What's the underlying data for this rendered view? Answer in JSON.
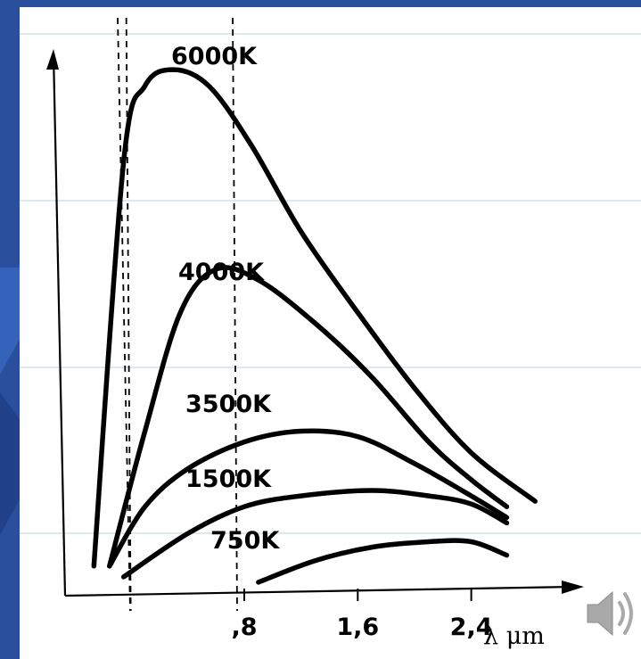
{
  "colors": {
    "slide_background": "#2a4f9c",
    "paper": "#ffffff",
    "ink": "#000000",
    "ruled_lines": "#b9d3dc",
    "speaker_icon": "#a9a9a9"
  },
  "icons": {
    "audio": "speaker-icon"
  },
  "chart_data": {
    "type": "line",
    "title": "",
    "xlabel": "λ μm",
    "ylabel": "",
    "xlim": [
      -0.4,
      3.1
    ],
    "ylim": [
      0,
      1.0
    ],
    "x_ticks": [
      0.8,
      1.6,
      2.4
    ],
    "x_tick_labels": [
      ",8",
      "1,6",
      "2,4"
    ],
    "grid": false,
    "legend": "labels on curves",
    "reference_lines_x": [
      0.0,
      0.75
    ],
    "series": [
      {
        "name": "6000K",
        "points": [
          [
            -0.26,
            0.05
          ],
          [
            -0.05,
            0.8
          ],
          [
            0.1,
            0.94
          ],
          [
            0.3,
            0.97
          ],
          [
            0.55,
            0.94
          ],
          [
            0.85,
            0.83
          ],
          [
            1.2,
            0.67
          ],
          [
            1.6,
            0.52
          ],
          [
            2.0,
            0.38
          ],
          [
            2.4,
            0.26
          ],
          [
            2.85,
            0.17
          ]
        ]
      },
      {
        "name": "4000K",
        "points": [
          [
            -0.15,
            0.05
          ],
          [
            0.1,
            0.3
          ],
          [
            0.35,
            0.52
          ],
          [
            0.6,
            0.6
          ],
          [
            0.9,
            0.58
          ],
          [
            1.3,
            0.5
          ],
          [
            1.7,
            0.4
          ],
          [
            2.1,
            0.28
          ],
          [
            2.4,
            0.21
          ],
          [
            2.65,
            0.16
          ]
        ]
      },
      {
        "name": "3500K",
        "points": [
          [
            -0.15,
            0.05
          ],
          [
            0.1,
            0.16
          ],
          [
            0.4,
            0.23
          ],
          [
            0.8,
            0.28
          ],
          [
            1.2,
            0.3
          ],
          [
            1.6,
            0.29
          ],
          [
            2.0,
            0.24
          ],
          [
            2.4,
            0.18
          ],
          [
            2.65,
            0.14
          ]
        ]
      },
      {
        "name": "1500K",
        "points": [
          [
            -0.05,
            0.03
          ],
          [
            0.4,
            0.11
          ],
          [
            0.8,
            0.16
          ],
          [
            1.2,
            0.18
          ],
          [
            1.7,
            0.19
          ],
          [
            2.1,
            0.18
          ],
          [
            2.4,
            0.165
          ],
          [
            2.65,
            0.13
          ]
        ]
      },
      {
        "name": "750K",
        "points": [
          [
            0.9,
            0.02
          ],
          [
            1.3,
            0.06
          ],
          [
            1.7,
            0.085
          ],
          [
            2.1,
            0.095
          ],
          [
            2.4,
            0.095
          ],
          [
            2.65,
            0.07
          ]
        ]
      }
    ]
  }
}
